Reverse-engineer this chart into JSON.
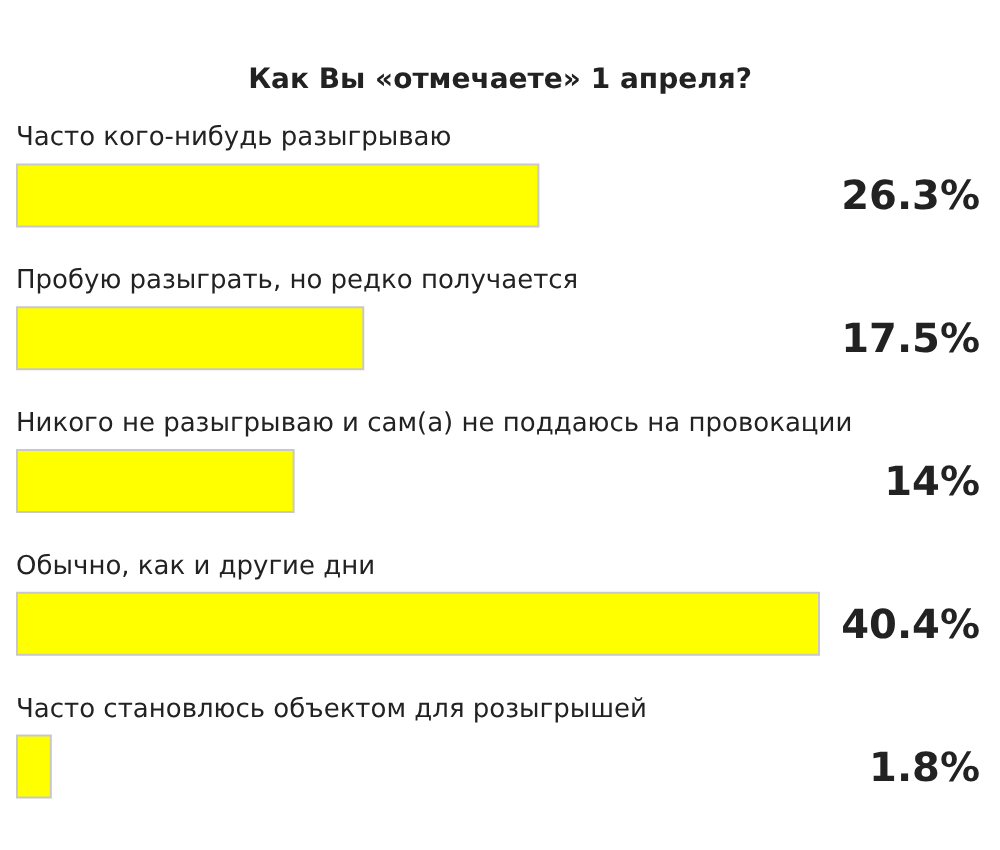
{
  "chart_data": {
    "type": "bar",
    "orientation": "horizontal",
    "title": "Как Вы «отмечаете» 1 апреля?",
    "categories": [
      "Часто кого-нибудь разыгрываю",
      "Пробую разыграть, но редко получается",
      "Никого не разыгрываю и сам(а) не поддаюсь на провокации",
      "Обычно, как и другие дни",
      "Часто становлюсь объектом для розыгрышей"
    ],
    "values": [
      26.3,
      17.5,
      14,
      40.4,
      1.8
    ],
    "value_labels": [
      "26.3%",
      "17.5%",
      "14%",
      "40.4%",
      "1.8%"
    ],
    "color": "#ffff00"
  }
}
